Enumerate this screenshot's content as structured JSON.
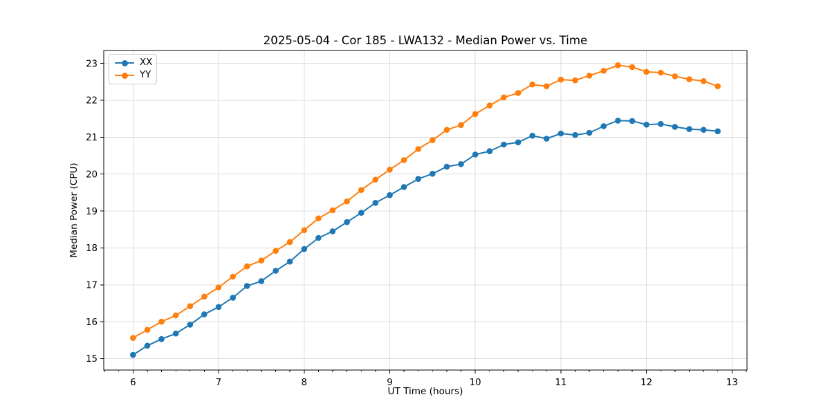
{
  "chart_data": {
    "type": "line",
    "title": "2025-05-04 - Cor 185 - LWA132 - Median Power vs. Time",
    "xlabel": "UT Time (hours)",
    "ylabel": "Median Power (CPU)",
    "xlim": [
      5.658,
      13.175
    ],
    "ylim": [
      14.69,
      23.35
    ],
    "x_ticks": [
      6,
      7,
      8,
      9,
      10,
      11,
      12,
      13
    ],
    "y_ticks": [
      15,
      16,
      17,
      18,
      19,
      20,
      21,
      22,
      23
    ],
    "x_minor_divisions": 6,
    "grid": true,
    "grid_color": "#dcdcdc",
    "spine_color": "#000000",
    "legend_position": "upper left",
    "x": [
      6.0,
      6.167,
      6.333,
      6.5,
      6.667,
      6.833,
      7.0,
      7.167,
      7.333,
      7.5,
      7.667,
      7.833,
      8.0,
      8.167,
      8.333,
      8.5,
      8.667,
      8.833,
      9.0,
      9.167,
      9.333,
      9.5,
      9.667,
      9.833,
      10.0,
      10.167,
      10.333,
      10.5,
      10.667,
      10.833,
      11.0,
      11.167,
      11.333,
      11.5,
      11.667,
      11.833,
      12.0,
      12.167,
      12.333,
      12.5,
      12.667,
      12.833
    ],
    "series": [
      {
        "name": "XX",
        "color": "#1f77b4",
        "values": [
          15.1,
          15.35,
          15.53,
          15.68,
          15.92,
          16.2,
          16.4,
          16.65,
          16.97,
          17.1,
          17.38,
          17.63,
          17.97,
          18.27,
          18.45,
          18.7,
          18.95,
          19.22,
          19.43,
          19.65,
          19.87,
          20.01,
          20.2,
          20.27,
          20.53,
          20.62,
          20.8,
          20.86,
          21.04,
          20.96,
          21.1,
          21.06,
          21.12,
          21.3,
          21.45,
          21.44,
          21.34,
          21.36,
          21.28,
          21.22,
          21.2,
          21.16
        ]
      },
      {
        "name": "YY",
        "color": "#ff7f0e",
        "values": [
          15.56,
          15.78,
          16.0,
          16.17,
          16.42,
          16.68,
          16.93,
          17.22,
          17.5,
          17.66,
          17.92,
          18.16,
          18.48,
          18.8,
          19.02,
          19.26,
          19.57,
          19.85,
          20.12,
          20.38,
          20.68,
          20.92,
          21.2,
          21.33,
          21.63,
          21.86,
          22.08,
          22.2,
          22.43,
          22.38,
          22.56,
          22.54,
          22.67,
          22.8,
          22.95,
          22.9,
          22.77,
          22.75,
          22.65,
          22.57,
          22.52,
          22.38
        ]
      }
    ]
  }
}
